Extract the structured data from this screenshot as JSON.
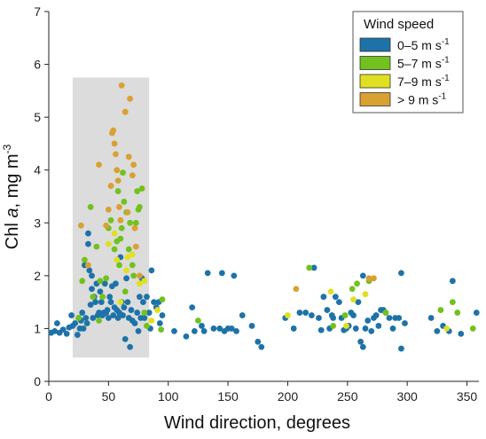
{
  "chart_data": {
    "type": "scatter",
    "title": "",
    "xlabel": "Wind direction, degrees",
    "ylabel_main": "Chl ",
    "ylabel_italic": "a",
    "ylabel_unit": ", mg m",
    "ylabel_sup": "-3",
    "xlim": [
      0,
      360
    ],
    "ylim": [
      0,
      7
    ],
    "xticks": [
      0,
      50,
      100,
      150,
      200,
      250,
      300,
      350
    ],
    "yticks": [
      0,
      1,
      2,
      3,
      4,
      5,
      6,
      7
    ],
    "grid": false,
    "highlight_region": {
      "x": [
        20,
        84
      ],
      "y": [
        0.45,
        5.75
      ],
      "color": "#dcdcdc"
    },
    "legend": {
      "title": "Wind speed",
      "placement": "top-right",
      "sup": "-1"
    },
    "series": [
      {
        "name": "0–5 m s",
        "color": "#1d73a8",
        "points": [
          [
            2,
            0.92
          ],
          [
            5,
            0.95
          ],
          [
            7,
            1.1
          ],
          [
            9,
            0.92
          ],
          [
            12,
            0.98
          ],
          [
            15,
            0.9
          ],
          [
            17,
            1.02
          ],
          [
            19,
            1.25
          ],
          [
            20,
            1.05
          ],
          [
            22,
            1.1
          ],
          [
            24,
            0.88
          ],
          [
            25,
            1.2
          ],
          [
            26,
            1.0
          ],
          [
            27,
            1.15
          ],
          [
            28,
            1.3
          ],
          [
            29,
            1.0
          ],
          [
            30,
            2.2
          ],
          [
            31,
            1.2
          ],
          [
            32,
            1.1
          ],
          [
            33,
            2.8
          ],
          [
            33,
            2.6
          ],
          [
            34,
            2.1
          ],
          [
            35,
            1.45
          ],
          [
            36,
            2.0
          ],
          [
            36,
            1.75
          ],
          [
            37,
            1.2
          ],
          [
            38,
            1.6
          ],
          [
            39,
            1.5
          ],
          [
            40,
            1.85
          ],
          [
            41,
            1.25
          ],
          [
            42,
            1.3
          ],
          [
            43,
            1.7
          ],
          [
            44,
            1.5
          ],
          [
            45,
            1.25
          ],
          [
            46,
            1.3
          ],
          [
            47,
            1.85
          ],
          [
            48,
            1.3
          ],
          [
            49,
            1.35
          ],
          [
            50,
            1.2
          ],
          [
            51,
            1.6
          ],
          [
            52,
            1.5
          ],
          [
            53,
            1.8
          ],
          [
            54,
            1.25
          ],
          [
            55,
            1.4
          ],
          [
            56,
            1.85
          ],
          [
            57,
            1.35
          ],
          [
            58,
            1.2
          ],
          [
            59,
            1.3
          ],
          [
            60,
            2.35
          ],
          [
            61,
            1.5
          ],
          [
            62,
            1.25
          ],
          [
            63,
            1.4
          ],
          [
            64,
            0.8
          ],
          [
            65,
            1.95
          ],
          [
            66,
            1.5
          ],
          [
            67,
            1.2
          ],
          [
            68,
            0.65
          ],
          [
            69,
            1.35
          ],
          [
            70,
            1.15
          ],
          [
            72,
            1.1
          ],
          [
            74,
            1.3
          ],
          [
            75,
            0.95
          ],
          [
            76,
            1.6
          ],
          [
            77,
            1.2
          ],
          [
            78,
            1.95
          ],
          [
            79,
            1.5
          ],
          [
            80,
            1.2
          ],
          [
            82,
            1.6
          ],
          [
            84,
            1.3
          ],
          [
            85,
            1.0
          ],
          [
            86,
            2.1
          ],
          [
            88,
            1.5
          ],
          [
            90,
            1.4
          ],
          [
            92,
            1.5
          ],
          [
            93,
            1.1
          ],
          [
            95,
            1.25
          ],
          [
            105,
            0.95
          ],
          [
            115,
            0.85
          ],
          [
            120,
            1.4
          ],
          [
            122,
            0.95
          ],
          [
            128,
            1.05
          ],
          [
            130,
            0.95
          ],
          [
            133,
            2.05
          ],
          [
            138,
            1.0
          ],
          [
            143,
            1.0
          ],
          [
            145,
            2.05
          ],
          [
            147,
            0.95
          ],
          [
            150,
            1.0
          ],
          [
            153,
            1.0
          ],
          [
            155,
            2.0
          ],
          [
            157,
            0.95
          ],
          [
            162,
            1.25
          ],
          [
            170,
            1.05
          ],
          [
            175,
            0.75
          ],
          [
            178,
            0.65
          ],
          [
            198,
            1.2
          ],
          [
            205,
            1.0
          ],
          [
            210,
            1.3
          ],
          [
            215,
            1.3
          ],
          [
            220,
            1.25
          ],
          [
            222,
            2.15
          ],
          [
            226,
            1.2
          ],
          [
            228,
            0.97
          ],
          [
            230,
            1.6
          ],
          [
            233,
            1.35
          ],
          [
            235,
            1.0
          ],
          [
            237,
            1.25
          ],
          [
            238,
            1.2
          ],
          [
            240,
            1.6
          ],
          [
            243,
            1.5
          ],
          [
            245,
            1.2
          ],
          [
            247,
            0.97
          ],
          [
            249,
            1.0
          ],
          [
            251,
            1.05
          ],
          [
            253,
            1.3
          ],
          [
            255,
            1.25
          ],
          [
            257,
            1.0
          ],
          [
            259,
            1.5
          ],
          [
            261,
            0.75
          ],
          [
            263,
            0.65
          ],
          [
            263,
            2.0
          ],
          [
            265,
            1.0
          ],
          [
            267,
            1.15
          ],
          [
            270,
            0.95
          ],
          [
            272,
            1.2
          ],
          [
            274,
            1.25
          ],
          [
            276,
            1.05
          ],
          [
            278,
            1.35
          ],
          [
            280,
            1.35
          ],
          [
            282,
            1.3
          ],
          [
            285,
            1.2
          ],
          [
            288,
            1.0
          ],
          [
            290,
            1.2
          ],
          [
            293,
            1.2
          ],
          [
            295,
            2.05
          ],
          [
            295,
            0.62
          ],
          [
            298,
            1.1
          ],
          [
            320,
            1.2
          ],
          [
            325,
            0.95
          ],
          [
            330,
            1.05
          ],
          [
            335,
            0.95
          ],
          [
            338,
            1.9
          ],
          [
            345,
            0.9
          ],
          [
            358,
            1.3
          ]
        ]
      },
      {
        "name": "5–7 m s",
        "color": "#72c11e",
        "points": [
          [
            25,
            1.2
          ],
          [
            28,
            1.9
          ],
          [
            30,
            2.3
          ],
          [
            35,
            3.3
          ],
          [
            37,
            1.6
          ],
          [
            40,
            2.55
          ],
          [
            42,
            1.15
          ],
          [
            43,
            1.9
          ],
          [
            45,
            1.6
          ],
          [
            48,
            1.95
          ],
          [
            50,
            2.9
          ],
          [
            52,
            3.05
          ],
          [
            55,
            2.5
          ],
          [
            57,
            2.65
          ],
          [
            58,
            3.6
          ],
          [
            59,
            2.2
          ],
          [
            60,
            2.7
          ],
          [
            61,
            2.9
          ],
          [
            62,
            3.95
          ],
          [
            63,
            3.4
          ],
          [
            64,
            1.7
          ],
          [
            65,
            3.2
          ],
          [
            67,
            2.5
          ],
          [
            68,
            3.0
          ],
          [
            70,
            2.2
          ],
          [
            71,
            2.0
          ],
          [
            73,
            3.0
          ],
          [
            74,
            3.6
          ],
          [
            75,
            3.25
          ],
          [
            76,
            3.3
          ],
          [
            78,
            3.65
          ],
          [
            80,
            1.3
          ],
          [
            82,
            1.05
          ],
          [
            94,
            0.98
          ],
          [
            95,
            1.55
          ],
          [
            125,
            1.15
          ],
          [
            218,
            2.15
          ],
          [
            238,
            1.05
          ],
          [
            248,
            1.25
          ],
          [
            254,
            1.75
          ],
          [
            258,
            1.85
          ],
          [
            268,
            1.9
          ],
          [
            282,
            1.3
          ],
          [
            328,
            1.35
          ],
          [
            338,
            1.5
          ],
          [
            342,
            1.3
          ],
          [
            355,
            1.0
          ]
        ]
      },
      {
        "name": "7–9 m s",
        "color": "#dfe021",
        "points": [
          [
            50,
            2.6
          ],
          [
            55,
            2.8
          ],
          [
            57,
            2.3
          ],
          [
            60,
            1.5
          ],
          [
            65,
            2.1
          ],
          [
            66,
            2.35
          ],
          [
            70,
            2.4
          ],
          [
            76,
            1.85
          ],
          [
            80,
            1.9
          ],
          [
            86,
            1.15
          ],
          [
            91,
            1.35
          ],
          [
            200,
            1.25
          ],
          [
            236,
            1.7
          ],
          [
            249,
            1.05
          ],
          [
            255,
            1.55
          ],
          [
            265,
            1.65
          ],
          [
            333,
            1.0
          ]
        ]
      },
      {
        "name": "> 9 m s",
        "color": "#d9a032",
        "points": [
          [
            27,
            2.95
          ],
          [
            33,
            2.2
          ],
          [
            42,
            4.1
          ],
          [
            48,
            2.95
          ],
          [
            50,
            3.25
          ],
          [
            52,
            3.7
          ],
          [
            53,
            4.7
          ],
          [
            54,
            4.75
          ],
          [
            55,
            4.5
          ],
          [
            56,
            4.3
          ],
          [
            57,
            4.0
          ],
          [
            58,
            3.8
          ],
          [
            59,
            3.3
          ],
          [
            60,
            3.05
          ],
          [
            61,
            5.6
          ],
          [
            64,
            5.1
          ],
          [
            66,
            3.2
          ],
          [
            67,
            4.25
          ],
          [
            68,
            5.35
          ],
          [
            70,
            3.9
          ],
          [
            71,
            4.1
          ],
          [
            72,
            2.9
          ],
          [
            73,
            2.55
          ],
          [
            76,
            2.0
          ],
          [
            207,
            1.75
          ],
          [
            268,
            1.95
          ],
          [
            272,
            1.95
          ]
        ]
      }
    ]
  }
}
